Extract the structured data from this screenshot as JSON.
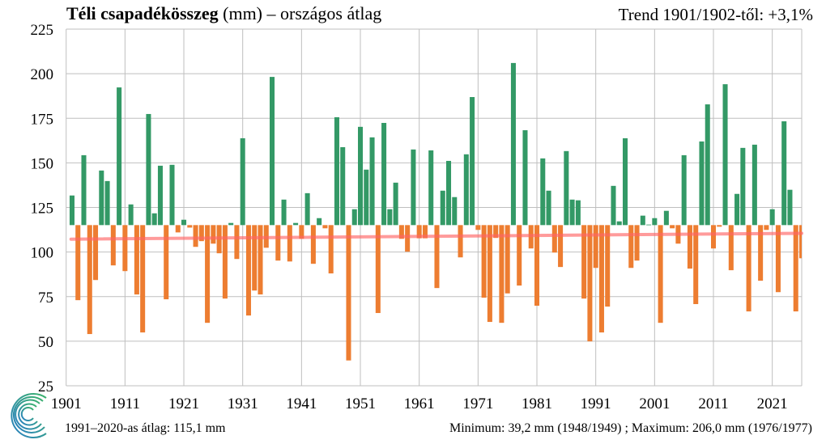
{
  "header": {
    "title_bold": "Téli csapadékösszeg",
    "title_rest": " (mm) – országos átlag",
    "trend": "Trend 1901/1902-től: +3,1%"
  },
  "footer": {
    "average": "1991–2020-as átlag:  115,1 mm",
    "minmax": "Minimum:  39,2 mm (1948/1949)  ; Maximum:  206,0 mm (1976/1977)"
  },
  "colors": {
    "above": "#339966",
    "below": "#ED7D31",
    "trend": "#FF6666",
    "grid": "#BFBFBF"
  },
  "chart_data": {
    "type": "bar",
    "title": "Téli csapadékösszeg (mm) – országos átlag",
    "xlabel": "",
    "ylabel": "mm",
    "ylim": [
      25,
      225
    ],
    "yticks": [
      "25",
      "50",
      "75",
      "100",
      "125",
      "150",
      "175",
      "200",
      "225"
    ],
    "xticks": [
      "1901",
      "1911",
      "1921",
      "1931",
      "1941",
      "1951",
      "1961",
      "1971",
      "1981",
      "1991",
      "2001",
      "2011",
      "2021"
    ],
    "baseline": 115.1,
    "first_year": 1901,
    "values": [
      131.7,
      73.0,
      154.3,
      54.0,
      84.3,
      145.7,
      139.8,
      92.5,
      192.3,
      89.3,
      126.7,
      76.2,
      54.9,
      177.4,
      121.7,
      148.4,
      73.5,
      148.9,
      111.0,
      118.1,
      113.7,
      102.9,
      106.1,
      60.3,
      104.7,
      99.3,
      73.9,
      116.3,
      96.1,
      163.8,
      64.4,
      78.4,
      76.2,
      102.4,
      198.2,
      95.2,
      129.4,
      94.7,
      116.3,
      107.4,
      133.0,
      93.4,
      119.0,
      113.3,
      88.0,
      175.6,
      158.8,
      39.2,
      124.0,
      170.2,
      146.2,
      164.3,
      65.8,
      172.4,
      124.0,
      138.9,
      107.4,
      100.2,
      157.5,
      107.7,
      107.7,
      157.0,
      79.8,
      134.4,
      151.1,
      130.8,
      97.0,
      154.8,
      186.9,
      112.4,
      74.4,
      60.8,
      107.9,
      60.3,
      76.8,
      206.0,
      81.2,
      168.3,
      102.0,
      69.9,
      152.5,
      134.4,
      99.7,
      91.6,
      156.6,
      129.4,
      129.0,
      73.9,
      49.9,
      91.1,
      54.9,
      69.4,
      137.1,
      117.2,
      163.8,
      91.1,
      95.2,
      120.4,
      115.4,
      119.0,
      60.3,
      123.1,
      113.3,
      104.7,
      154.3,
      90.7,
      70.8,
      162.0,
      182.8,
      102.0,
      114.2,
      194.1,
      89.8,
      132.6,
      158.4,
      66.7,
      160.2,
      83.9,
      112.4,
      124.0,
      77.5,
      173.3,
      134.9,
      66.7,
      96.5
    ],
    "trend_line": {
      "start": 107.2,
      "end": 110.5
    },
    "grid": true
  }
}
